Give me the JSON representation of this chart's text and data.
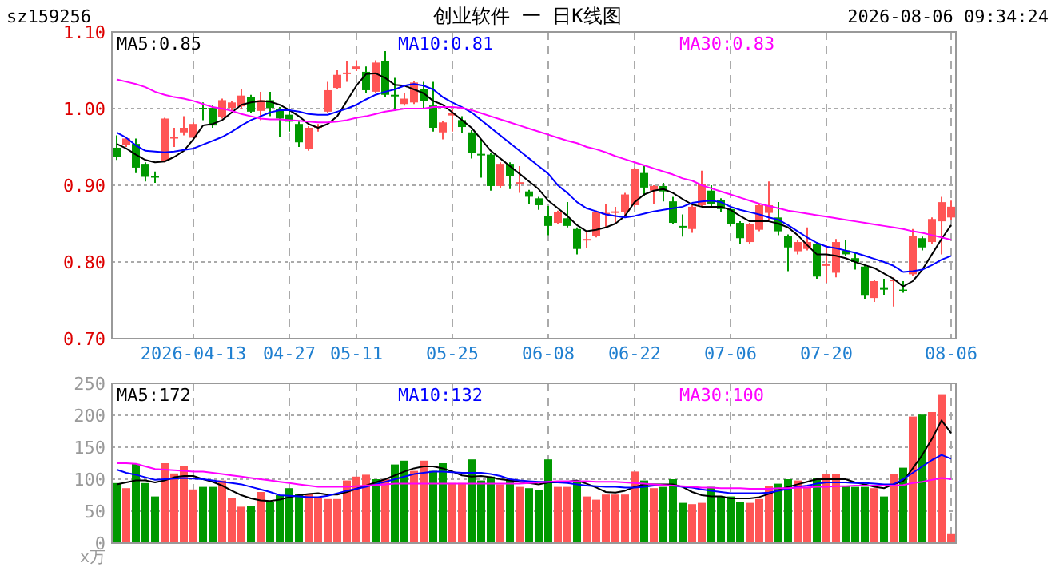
{
  "chart_data": [
    {
      "type": "candlestick",
      "title": "创业软件 一 日K线图",
      "annotations": [
        "sz159256",
        "2026-08-06 09:34:24"
      ],
      "colors": [
        "#009900",
        "#ff5555",
        "#009900",
        "#009900",
        "#009900",
        "#ff5555",
        "#ff5555",
        "#ff5555",
        "#ff5555",
        "#009900",
        "#009900",
        "#ff5555",
        "#ff5555",
        "#ff5555",
        "#009900",
        "#ff5555",
        "#009900",
        "#009900",
        "#009900",
        "#009900",
        "#ff5555",
        "#ff5555",
        "#ff5555",
        "#ff5555",
        "#ff5555",
        "#ff5555",
        "#009900",
        "#ff5555",
        "#009900",
        "#009900",
        "#ff5555",
        "#ff5555",
        "#009900",
        "#009900",
        "#ff5555",
        "#ff5555",
        "#009900",
        "#009900",
        "#009900",
        "#009900",
        "#ff5555",
        "#009900",
        "#ff5555",
        "#009900",
        "#009900",
        "#009900",
        "#ff5555",
        "#009900",
        "#009900",
        "#ff5555",
        "#ff5555",
        "#ff5555",
        "#ff5555",
        "#ff5555",
        "#ff5555",
        "#009900",
        "#ff5555",
        "#009900",
        "#009900",
        "#009900",
        "#ff5555",
        "#ff5555",
        "#009900",
        "#009900",
        "#009900",
        "#009900",
        "#ff5555",
        "#ff5555",
        "#ff5555",
        "#009900",
        "#009900",
        "#ff5555",
        "#ff5555",
        "#009900",
        "#ff5555",
        "#ff5555",
        "#009900",
        "#009900",
        "#009900",
        "#ff5555",
        "#009900",
        "#ff5555",
        "#009900",
        "#ff5555",
        "#009900",
        "#ff5555",
        "#ff5555",
        "#ff5555"
      ],
      "categories": [
        null,
        null,
        null,
        null,
        null,
        null,
        null,
        null,
        "2026-04-13",
        null,
        null,
        null,
        null,
        null,
        null,
        null,
        null,
        null,
        "04-27",
        null,
        null,
        null,
        null,
        null,
        null,
        "05-11",
        null,
        null,
        null,
        null,
        null,
        null,
        null,
        null,
        null,
        "05-25",
        null,
        null,
        null,
        null,
        null,
        null,
        null,
        null,
        null,
        "06-08",
        null,
        null,
        null,
        null,
        null,
        null,
        null,
        null,
        "06-22",
        null,
        null,
        null,
        null,
        null,
        null,
        null,
        null,
        null,
        "07-06",
        null,
        null,
        null,
        null,
        null,
        null,
        null,
        null,
        null,
        "07-20",
        null,
        null,
        null,
        null,
        null,
        null,
        null,
        null,
        null,
        null,
        null,
        null,
        "08-06"
      ],
      "ylim": [
        0.7,
        1.1
      ],
      "yticks": [
        {
          "value": 0.7,
          "label": "0.70"
        },
        {
          "value": 0.8,
          "label": "0.80"
        },
        {
          "value": 0.9,
          "label": "0.90"
        },
        {
          "value": 1.0,
          "label": "1.00"
        },
        {
          "value": 1.1,
          "label": "1.10"
        }
      ],
      "grid": true,
      "legend": "top",
      "ohlc": [
        [
          0.949,
          0.965,
          0.933,
          0.937
        ],
        [
          0.953,
          0.963,
          0.95,
          0.961
        ],
        [
          0.954,
          0.961,
          0.916,
          0.923
        ],
        [
          0.928,
          0.93,
          0.905,
          0.911
        ],
        [
          0.912,
          0.918,
          0.903,
          0.91
        ],
        [
          0.932,
          0.988,
          0.93,
          0.987
        ],
        [
          0.961,
          0.975,
          0.95,
          0.963
        ],
        [
          0.969,
          0.99,
          0.965,
          0.975
        ],
        [
          0.962,
          0.982,
          0.96,
          0.98
        ],
        [
          1.001,
          1.008,
          0.985,
          0.999
        ],
        [
          1.001,
          1.004,
          0.975,
          0.978
        ],
        [
          0.989,
          1.013,
          0.987,
          1.011
        ],
        [
          1.001,
          1.01,
          0.998,
          1.008
        ],
        [
          1.003,
          1.025,
          1.0,
          1.017
        ],
        [
          1.015,
          1.018,
          0.994,
          0.996
        ],
        [
          0.997,
          1.022,
          0.985,
          1.011
        ],
        [
          1.011,
          1.022,
          0.99,
          1.001
        ],
        [
          0.999,
          1.002,
          0.963,
          0.987
        ],
        [
          0.992,
          1.0,
          0.97,
          0.983
        ],
        [
          0.98,
          0.983,
          0.95,
          0.956
        ],
        [
          0.947,
          0.977,
          0.945,
          0.975
        ],
        [
          0.975,
          0.98,
          0.97,
          0.977
        ],
        [
          0.996,
          1.035,
          0.994,
          1.024
        ],
        [
          1.027,
          1.05,
          1.025,
          1.044
        ],
        [
          1.046,
          1.062,
          1.035,
          1.047
        ],
        [
          1.051,
          1.063,
          1.049,
          1.055
        ],
        [
          1.048,
          1.055,
          1.02,
          1.024
        ],
        [
          1.022,
          1.063,
          1.02,
          1.06
        ],
        [
          1.062,
          1.075,
          1.015,
          1.018
        ],
        [
          1.018,
          1.04,
          0.997,
          1.016
        ],
        [
          1.006,
          1.02,
          1.004,
          1.013
        ],
        [
          1.008,
          1.036,
          1.006,
          1.034
        ],
        [
          1.025,
          1.035,
          1.0,
          1.01
        ],
        [
          1.004,
          1.035,
          0.97,
          0.975
        ],
        [
          0.969,
          0.984,
          0.96,
          0.982
        ],
        [
          0.991,
          1.0,
          0.97,
          0.994
        ],
        [
          0.985,
          0.99,
          0.968,
          0.976
        ],
        [
          0.969,
          0.972,
          0.935,
          0.942
        ],
        [
          0.941,
          0.96,
          0.91,
          0.94
        ],
        [
          0.94,
          0.942,
          0.893,
          0.899
        ],
        [
          0.899,
          0.93,
          0.897,
          0.928
        ],
        [
          0.928,
          0.93,
          0.895,
          0.912
        ],
        [
          0.902,
          0.925,
          0.89,
          0.904
        ],
        [
          0.892,
          0.894,
          0.875,
          0.885
        ],
        [
          0.883,
          0.885,
          0.868,
          0.874
        ],
        [
          0.86,
          0.873,
          0.835,
          0.847
        ],
        [
          0.851,
          0.867,
          0.849,
          0.865
        ],
        [
          0.857,
          0.878,
          0.845,
          0.847
        ],
        [
          0.843,
          0.845,
          0.81,
          0.817
        ],
        [
          0.828,
          0.84,
          0.818,
          0.83
        ],
        [
          0.834,
          0.867,
          0.832,
          0.865
        ],
        [
          0.862,
          0.875,
          0.845,
          0.864
        ],
        [
          0.864,
          0.872,
          0.85,
          0.866
        ],
        [
          0.865,
          0.89,
          0.86,
          0.888
        ],
        [
          0.874,
          0.923,
          0.872,
          0.921
        ],
        [
          0.916,
          0.925,
          0.886,
          0.897
        ],
        [
          0.893,
          0.9,
          0.875,
          0.899
        ],
        [
          0.899,
          0.903,
          0.879,
          0.892
        ],
        [
          0.879,
          0.885,
          0.849,
          0.851
        ],
        [
          0.847,
          0.862,
          0.833,
          0.845
        ],
        [
          0.843,
          0.874,
          0.838,
          0.872
        ],
        [
          0.874,
          0.919,
          0.872,
          0.902
        ],
        [
          0.893,
          0.9,
          0.87,
          0.876
        ],
        [
          0.881,
          0.883,
          0.865,
          0.869
        ],
        [
          0.869,
          0.871,
          0.847,
          0.85
        ],
        [
          0.851,
          0.853,
          0.824,
          0.831
        ],
        [
          0.826,
          0.851,
          0.824,
          0.849
        ],
        [
          0.842,
          0.876,
          0.84,
          0.874
        ],
        [
          0.864,
          0.905,
          0.855,
          0.874
        ],
        [
          0.858,
          0.878,
          0.835,
          0.84
        ],
        [
          0.834,
          0.836,
          0.788,
          0.819
        ],
        [
          0.814,
          0.828,
          0.81,
          0.826
        ],
        [
          0.817,
          0.845,
          0.815,
          0.826
        ],
        [
          0.824,
          0.826,
          0.778,
          0.781
        ],
        [
          0.795,
          0.822,
          0.773,
          0.797
        ],
        [
          0.786,
          0.83,
          0.78,
          0.826
        ],
        [
          0.815,
          0.828,
          0.808,
          0.81
        ],
        [
          0.805,
          0.812,
          0.79,
          0.8
        ],
        [
          0.794,
          0.796,
          0.752,
          0.756
        ],
        [
          0.753,
          0.777,
          0.748,
          0.775
        ],
        [
          0.766,
          0.778,
          0.757,
          0.765
        ],
        [
          0.775,
          0.78,
          0.742,
          0.777
        ],
        [
          0.764,
          0.775,
          0.76,
          0.763
        ],
        [
          0.784,
          0.843,
          0.782,
          0.834
        ],
        [
          0.831,
          0.833,
          0.815,
          0.819
        ],
        [
          0.826,
          0.858,
          0.824,
          0.856
        ],
        [
          0.853,
          0.885,
          0.81,
          0.878
        ],
        [
          0.858,
          0.88,
          0.855,
          0.872
        ]
      ],
      "series": [
        {
          "type": "line",
          "name": "MA5:0.85",
          "color": "#000000",
          "values": [
            0.954,
            0.948,
            0.94,
            0.933,
            0.93,
            0.931,
            0.937,
            0.945,
            0.96,
            0.978,
            0.98,
            0.985,
            0.995,
            1.005,
            1.008,
            1.01,
            1.009,
            1.005,
            0.998,
            0.99,
            0.98,
            0.975,
            0.98,
            0.99,
            1.01,
            1.03,
            1.045,
            1.046,
            1.04,
            1.031,
            1.03,
            1.025,
            1.02,
            1.01,
            1.005,
            0.995,
            0.985,
            0.975,
            0.96,
            0.945,
            0.935,
            0.925,
            0.915,
            0.905,
            0.895,
            0.88,
            0.87,
            0.86,
            0.848,
            0.84,
            0.842,
            0.845,
            0.85,
            0.86,
            0.878,
            0.888,
            0.893,
            0.895,
            0.89,
            0.882,
            0.875,
            0.872,
            0.872,
            0.872,
            0.868,
            0.86,
            0.853,
            0.853,
            0.853,
            0.85,
            0.845,
            0.835,
            0.822,
            0.81,
            0.81,
            0.808,
            0.805,
            0.8,
            0.796,
            0.792,
            0.785,
            0.778,
            0.768,
            0.775,
            0.79,
            0.81,
            0.83,
            0.848
          ]
        },
        {
          "type": "line",
          "name": "MA10:0.81",
          "color": "#0000ff",
          "values": [
            0.969,
            0.962,
            0.952,
            0.945,
            0.944,
            0.943,
            0.944,
            0.946,
            0.948,
            0.953,
            0.958,
            0.963,
            0.97,
            0.978,
            0.985,
            0.99,
            0.995,
            0.998,
            0.998,
            0.996,
            0.993,
            0.992,
            0.992,
            0.996,
            1.0,
            1.005,
            1.012,
            1.018,
            1.022,
            1.025,
            1.03,
            1.032,
            1.03,
            1.025,
            1.015,
            1.008,
            1.002,
            0.995,
            0.985,
            0.975,
            0.965,
            0.955,
            0.945,
            0.935,
            0.925,
            0.915,
            0.9,
            0.89,
            0.878,
            0.87,
            0.866,
            0.862,
            0.86,
            0.858,
            0.86,
            0.863,
            0.866,
            0.868,
            0.87,
            0.872,
            0.877,
            0.879,
            0.88,
            0.878,
            0.872,
            0.868,
            0.865,
            0.862,
            0.858,
            0.855,
            0.848,
            0.84,
            0.832,
            0.825,
            0.82,
            0.818,
            0.815,
            0.812,
            0.808,
            0.804,
            0.8,
            0.795,
            0.787,
            0.788,
            0.79,
            0.796,
            0.803,
            0.808
          ]
        },
        {
          "type": "line",
          "name": "MA30:0.83",
          "color": "#ff00ff",
          "values": [
            1.038,
            1.035,
            1.032,
            1.028,
            1.022,
            1.018,
            1.015,
            1.013,
            1.01,
            1.006,
            1.002,
            1.0,
            0.997,
            0.993,
            0.99,
            0.987,
            0.986,
            0.986,
            0.985,
            0.984,
            0.983,
            0.982,
            0.982,
            0.983,
            0.985,
            0.988,
            0.99,
            0.993,
            0.996,
            0.998,
            1.0,
            1.0,
            1.0,
            1.002,
            1.002,
            1.002,
            1.001,
            0.998,
            0.994,
            0.99,
            0.986,
            0.982,
            0.978,
            0.974,
            0.97,
            0.966,
            0.962,
            0.958,
            0.955,
            0.95,
            0.947,
            0.943,
            0.938,
            0.934,
            0.93,
            0.926,
            0.922,
            0.918,
            0.914,
            0.909,
            0.906,
            0.9,
            0.896,
            0.892,
            0.888,
            0.884,
            0.88,
            0.876,
            0.873,
            0.87,
            0.867,
            0.865,
            0.863,
            0.861,
            0.859,
            0.857,
            0.855,
            0.853,
            0.851,
            0.849,
            0.847,
            0.845,
            0.843,
            0.84,
            0.838,
            0.835,
            0.832,
            0.829
          ]
        }
      ]
    },
    {
      "type": "bar",
      "annotations": [
        "x万"
      ],
      "tick_labels": "y",
      "grid": true,
      "legend": "top",
      "categories": [
        null,
        null,
        null,
        null,
        null,
        null,
        null,
        null,
        null,
        null,
        null,
        null,
        null,
        null,
        null,
        null,
        null,
        null,
        null,
        null,
        null,
        null,
        null,
        null,
        null,
        null,
        null,
        null,
        null,
        null,
        null,
        null,
        null,
        null,
        null,
        null,
        null,
        null,
        null,
        null,
        null,
        null,
        null,
        null,
        null,
        null,
        null,
        null,
        null,
        null,
        null,
        null,
        null,
        null,
        null,
        null,
        null,
        null,
        null,
        null,
        null,
        null,
        null,
        null,
        null,
        null,
        null,
        null,
        null,
        null,
        null,
        null,
        null,
        null,
        null,
        null,
        null,
        null,
        null,
        null,
        null,
        null,
        null,
        null,
        null,
        null,
        null,
        null
      ],
      "ylim": [
        0,
        250
      ],
      "yticks": [
        0,
        50,
        100,
        150,
        200,
        250
      ],
      "series": [
        {
          "values": [
            94,
            86,
            124,
            94,
            73,
            125,
            109,
            121,
            84,
            88,
            88,
            98,
            71,
            57,
            58,
            80,
            65,
            75,
            86,
            77,
            77,
            70,
            69,
            69,
            98,
            104,
            107,
            100,
            100,
            123,
            129,
            113,
            129,
            113,
            125,
            94,
            94,
            131,
            98,
            104,
            92,
            100,
            88,
            86,
            83,
            131,
            88,
            88,
            98,
            73,
            68,
            76,
            76,
            76,
            112,
            98,
            86,
            88,
            100,
            63,
            61,
            63,
            88,
            73,
            73,
            65,
            63,
            69,
            90,
            93,
            100,
            98,
            88,
            102,
            108,
            108,
            90,
            88,
            88,
            86,
            73,
            108,
            118,
            198,
            201,
            205,
            233,
            14
          ],
          "colors": [
            "#009900",
            "#ff5555",
            "#009900",
            "#009900",
            "#009900",
            "#ff5555",
            "#ff5555",
            "#ff5555",
            "#ff5555",
            "#009900",
            "#009900",
            "#ff5555",
            "#ff5555",
            "#ff5555",
            "#009900",
            "#ff5555",
            "#009900",
            "#009900",
            "#009900",
            "#009900",
            "#ff5555",
            "#ff5555",
            "#ff5555",
            "#ff5555",
            "#ff5555",
            "#ff5555",
            "#ff5555",
            "#009900",
            "#ff5555",
            "#009900",
            "#009900",
            "#ff5555",
            "#ff5555",
            "#009900",
            "#009900",
            "#ff5555",
            "#ff5555",
            "#009900",
            "#009900",
            "#009900",
            "#ff5555",
            "#009900",
            "#ff5555",
            "#009900",
            "#009900",
            "#009900",
            "#ff5555",
            "#ff5555",
            "#009900",
            "#ff5555",
            "#ff5555",
            "#ff5555",
            "#ff5555",
            "#ff5555",
            "#ff5555",
            "#009900",
            "#ff5555",
            "#009900",
            "#009900",
            "#009900",
            "#ff5555",
            "#ff5555",
            "#009900",
            "#009900",
            "#009900",
            "#009900",
            "#ff5555",
            "#ff5555",
            "#ff5555",
            "#009900",
            "#009900",
            "#ff5555",
            "#ff5555",
            "#009900",
            "#ff5555",
            "#ff5555",
            "#009900",
            "#009900",
            "#009900",
            "#ff5555",
            "#009900",
            "#ff5555",
            "#009900",
            "#ff5555",
            "#009900",
            "#ff5555",
            "#ff5555",
            "#ff5555"
          ]
        },
        {
          "type": "line",
          "name": "MA5:172",
          "color": "#000000",
          "values": [
            92,
            95,
            98,
            98,
            95,
            98,
            103,
            105,
            105,
            100,
            96,
            90,
            82,
            75,
            70,
            67,
            66,
            68,
            72,
            75,
            77,
            78,
            76,
            76,
            80,
            85,
            90,
            95,
            100,
            106,
            112,
            117,
            120,
            120,
            117,
            112,
            106,
            104,
            105,
            103,
            100,
            98,
            96,
            94,
            92,
            95,
            95,
            96,
            98,
            93,
            87,
            80,
            79,
            82,
            88,
            92,
            92,
            92,
            92,
            88,
            80,
            75,
            73,
            73,
            70,
            70,
            70,
            72,
            77,
            83,
            88,
            92,
            96,
            100,
            100,
            100,
            100,
            95,
            92,
            88,
            86,
            92,
            97,
            117,
            138,
            163,
            192,
            172
          ]
        },
        {
          "type": "line",
          "name": "MA10:132",
          "color": "#0000ff",
          "values": [
            115,
            110,
            107,
            103,
            99,
            100,
            101,
            102,
            101,
            100,
            98,
            96,
            94,
            92,
            88,
            84,
            80,
            75,
            74,
            73,
            72,
            72,
            74,
            78,
            82,
            85,
            88,
            92,
            96,
            100,
            104,
            108,
            110,
            112,
            112,
            111,
            110,
            110,
            110,
            108,
            105,
            100,
            98,
            97,
            96,
            96,
            95,
            94,
            92,
            90,
            89,
            88,
            88,
            87,
            87,
            88,
            90,
            90,
            90,
            88,
            87,
            84,
            82,
            80,
            78,
            78,
            78,
            78,
            79,
            82,
            85,
            88,
            90,
            93,
            95,
            95,
            95,
            94,
            94,
            93,
            92,
            92,
            100,
            110,
            120,
            130,
            138,
            132
          ]
        },
        {
          "type": "line",
          "name": "MA30:100",
          "color": "#ff00ff",
          "values": [
            125,
            125,
            124,
            120,
            116,
            115,
            114,
            113,
            112,
            112,
            110,
            108,
            106,
            104,
            102,
            100,
            98,
            96,
            94,
            92,
            90,
            88,
            88,
            88,
            88,
            89,
            90,
            91,
            92,
            93,
            93,
            93,
            93,
            93,
            93,
            93,
            93,
            93,
            93,
            93,
            93,
            93,
            93,
            94,
            95,
            96,
            97,
            97,
            97,
            97,
            96,
            96,
            96,
            95,
            94,
            93,
            92,
            91,
            90,
            89,
            88,
            87,
            87,
            86,
            86,
            86,
            85,
            85,
            85,
            86,
            86,
            87,
            87,
            88,
            88,
            89,
            89,
            90,
            90,
            90,
            90,
            90,
            91,
            94,
            96,
            99,
            102,
            100
          ]
        }
      ]
    }
  ]
}
